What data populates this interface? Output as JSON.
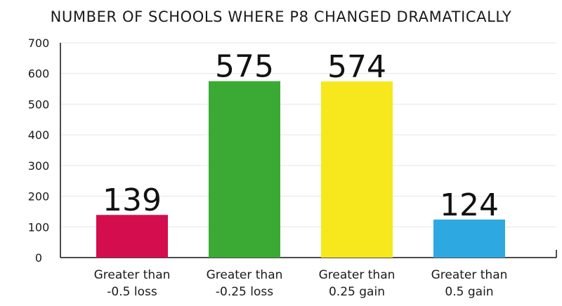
{
  "chart_data": {
    "type": "bar",
    "title": "NUMBER OF SCHOOLS WHERE P8 CHANGED DRAMATICALLY",
    "categories": [
      [
        "Greater than",
        "-0.5 loss"
      ],
      [
        "Greater than",
        "-0.25 loss"
      ],
      [
        "Greater than",
        "0.25 gain"
      ],
      [
        "Greater than",
        "0.5 gain"
      ]
    ],
    "values": [
      139,
      575,
      574,
      124
    ],
    "colors": [
      "#d40d4f",
      "#3aaa35",
      "#f6e81d",
      "#2ea8e0"
    ],
    "ylim": [
      0,
      700
    ],
    "yticks": [
      0,
      100,
      200,
      300,
      400,
      500,
      600,
      700
    ],
    "grid": true,
    "legend": "none",
    "xlabel": "",
    "ylabel": ""
  }
}
